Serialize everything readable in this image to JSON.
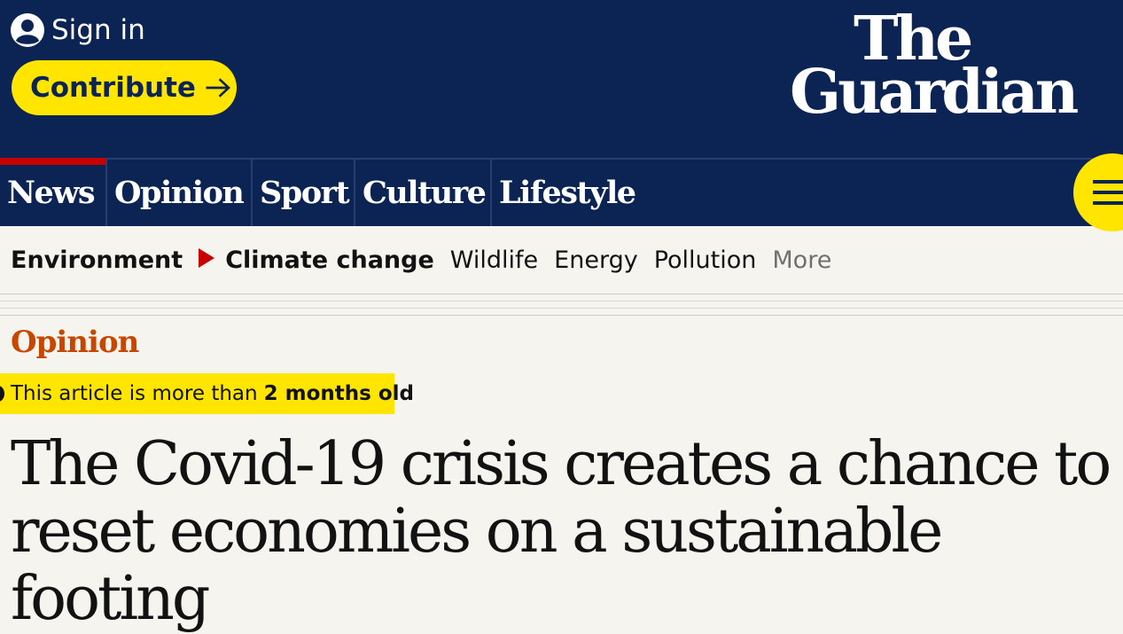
{
  "header": {
    "sign_in_label": "Sign in",
    "contribute_label": "Contribute",
    "logo_line1": "The",
    "logo_line2": "Guardian"
  },
  "pillars": [
    {
      "label": "News",
      "active": true
    },
    {
      "label": "Opinion",
      "active": false
    },
    {
      "label": "Sport",
      "active": false
    },
    {
      "label": "Culture",
      "active": false
    },
    {
      "label": "Lifestyle",
      "active": false
    }
  ],
  "subnav": {
    "section": "Environment",
    "current": "Climate change",
    "items": [
      "Wildlife",
      "Energy",
      "Pollution"
    ],
    "more": "More"
  },
  "article": {
    "kicker": "Opinion",
    "age_text": "This article is more than",
    "age_value": "2 months old",
    "headline": "The Covid-19 crisis creates a chance to reset economies on a sustainable footing"
  },
  "colors": {
    "masthead": "#0b2454",
    "accent_yellow": "#ffe500",
    "news_red": "#c70000",
    "opinion_orange": "#c74600"
  },
  "icons": {
    "sign_in": "user-circle-icon",
    "contribute": "arrow-right-icon",
    "menu": "hamburger-icon",
    "subnav_marker": "triangle-right-icon"
  }
}
